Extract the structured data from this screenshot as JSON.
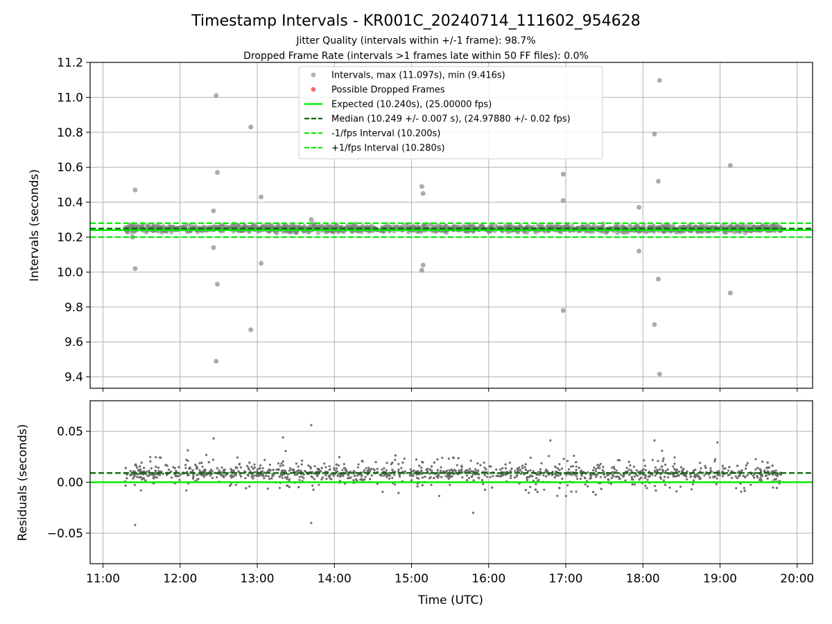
{
  "title": "Timestamp Intervals - KR001C_20240714_111602_954628",
  "subtitle1": "Jitter Quality (intervals within +/-1 frame): 98.7%",
  "subtitle2": "Dropped Frame Rate (intervals >1 frames late within 50 FF files): 0.0%",
  "colors": {
    "points": "#808080",
    "dropped": "#ff0000",
    "expected": "#00ee00",
    "median": "#006400",
    "band": "#00ee00",
    "grid": "#b0b0b0"
  },
  "chart_data": [
    {
      "type": "scatter",
      "ylabel": "Intervals (seconds)",
      "xlabel": "",
      "xlim": [
        "10:50",
        "20:12"
      ],
      "ylim": [
        9.335,
        11.2
      ],
      "y_ticks": [
        "9.4",
        "9.6",
        "9.8",
        "10.0",
        "10.2",
        "10.4",
        "10.6",
        "10.8",
        "11.0",
        "11.2"
      ],
      "x_ticks": [
        "11:00",
        "12:00",
        "13:00",
        "14:00",
        "15:00",
        "16:00",
        "17:00",
        "18:00",
        "19:00",
        "20:00"
      ],
      "grid": true,
      "legend_position": "top-center",
      "legend": [
        "Intervals, max (11.097s), min (9.416s)",
        "Possible Dropped Frames",
        "Expected (10.240s), (25.00000 fps)",
        "Median (10.249 +/- 0.007 s), (24.97880 +/- 0.02 fps)",
        "-1/fps Interval (10.200s)",
        "+1/fps Interval (10.280s)"
      ],
      "expected": 10.24,
      "median": 10.249,
      "lower_band": 10.2,
      "upper_band": 10.28,
      "main_band": {
        "x_start": "11:17",
        "x_end": "19:48",
        "y_center": 10.249,
        "y_spread": 0.03
      },
      "outliers": [
        {
          "x": "11:25",
          "y": 10.47
        },
        {
          "x": "11:25",
          "y": 10.02
        },
        {
          "x": "11:23",
          "y": 10.2
        },
        {
          "x": "12:26",
          "y": 10.35
        },
        {
          "x": "12:26",
          "y": 10.14
        },
        {
          "x": "12:28",
          "y": 11.01
        },
        {
          "x": "12:29",
          "y": 10.57
        },
        {
          "x": "12:29",
          "y": 9.93
        },
        {
          "x": "12:28",
          "y": 9.49
        },
        {
          "x": "12:55",
          "y": 10.83
        },
        {
          "x": "12:55",
          "y": 9.67
        },
        {
          "x": "13:03",
          "y": 10.43
        },
        {
          "x": "13:03",
          "y": 10.05
        },
        {
          "x": "13:42",
          "y": 10.3
        },
        {
          "x": "15:08",
          "y": 10.49
        },
        {
          "x": "15:09",
          "y": 10.45
        },
        {
          "x": "15:09",
          "y": 10.04
        },
        {
          "x": "15:08",
          "y": 10.01
        },
        {
          "x": "16:58",
          "y": 10.56
        },
        {
          "x": "16:58",
          "y": 10.41
        },
        {
          "x": "16:58",
          "y": 9.78
        },
        {
          "x": "17:57",
          "y": 10.37
        },
        {
          "x": "17:57",
          "y": 10.12
        },
        {
          "x": "18:09",
          "y": 10.79
        },
        {
          "x": "18:09",
          "y": 9.7
        },
        {
          "x": "18:13",
          "y": 11.097
        },
        {
          "x": "18:12",
          "y": 10.52
        },
        {
          "x": "18:12",
          "y": 9.96
        },
        {
          "x": "18:13",
          "y": 9.416
        },
        {
          "x": "19:08",
          "y": 10.61
        },
        {
          "x": "19:08",
          "y": 9.88
        }
      ]
    },
    {
      "type": "scatter",
      "ylabel": "Residuals (seconds)",
      "xlabel": "Time (UTC)",
      "xlim": [
        "10:50",
        "20:12"
      ],
      "ylim": [
        -0.08,
        0.08
      ],
      "y_ticks": [
        "−0.05",
        "0.00",
        "0.05"
      ],
      "x_ticks": [
        "11:00",
        "12:00",
        "13:00",
        "14:00",
        "15:00",
        "16:00",
        "17:00",
        "18:00",
        "19:00",
        "20:00"
      ],
      "grid": true,
      "zero_line": 0.0,
      "median_line": 0.009,
      "residual_band": {
        "x_start": "11:17",
        "x_end": "19:48",
        "y_center": 0.009,
        "y_spread": 0.03
      },
      "outliers": [
        {
          "x": "11:25",
          "y": -0.042
        },
        {
          "x": "13:42",
          "y": 0.056
        },
        {
          "x": "13:42",
          "y": -0.04
        },
        {
          "x": "12:26",
          "y": 0.043
        },
        {
          "x": "13:20",
          "y": 0.044
        },
        {
          "x": "18:09",
          "y": 0.041
        },
        {
          "x": "16:48",
          "y": 0.041
        },
        {
          "x": "15:48",
          "y": -0.03
        },
        {
          "x": "18:58",
          "y": 0.039
        }
      ]
    }
  ]
}
